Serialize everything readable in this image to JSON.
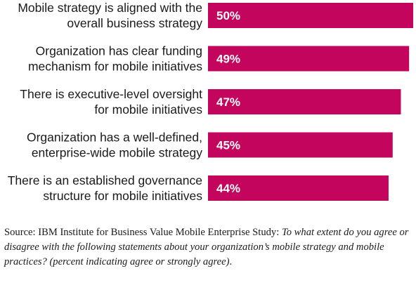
{
  "chart_data": {
    "type": "bar",
    "orientation": "horizontal",
    "categories": [
      [
        "Mobile strategy is aligned with the",
        "overall business strategy"
      ],
      [
        "Organization has clear funding",
        "mechanism for mobile initiatives"
      ],
      [
        "There is executive-level oversight",
        "for mobile initiatives"
      ],
      [
        "Organization has a well-defined,",
        "enterprise-wide mobile strategy"
      ],
      [
        "There is an established governance",
        "structure for mobile initiatives"
      ]
    ],
    "values": [
      50,
      49,
      47,
      45,
      44
    ],
    "value_labels": [
      "50%",
      "49%",
      "47%",
      "45%",
      "44%"
    ],
    "unit": "%",
    "xlim": [
      0,
      50
    ],
    "grid": false,
    "bar_color": "#c4055e"
  },
  "source": {
    "prefix": "Source: IBM Institute for Business Value Mobile Enterprise Study: ",
    "question": "To what extent do you agree or disagree with the following statements about your organization’s mobile strategy and mobile practices? (percent indicating agree or strongly agree)",
    "suffix": "."
  }
}
